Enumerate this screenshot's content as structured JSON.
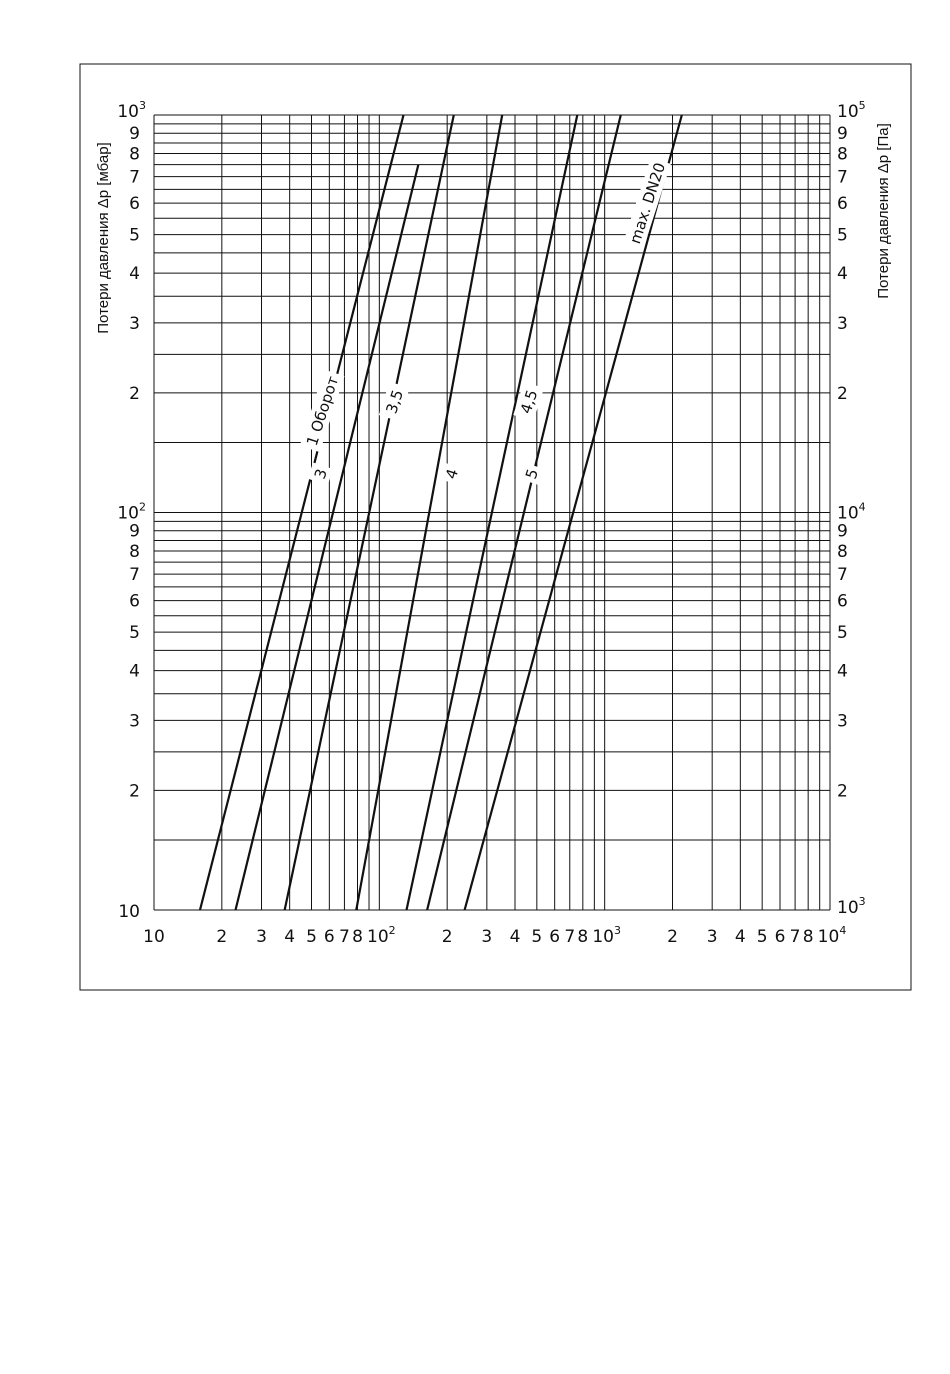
{
  "chart_data": {
    "type": "line",
    "title": "",
    "x_scale": "log",
    "y_scale": "log",
    "xlim": [
      10,
      10000
    ],
    "ylim": [
      10,
      1000
    ],
    "grid": true,
    "y_label_left": "Потери давления Δp [мбар]",
    "y_label_right": "Потери давления Δp [Па]",
    "x_tick_labels": [
      {
        "value": 10,
        "base": "10",
        "sup": ""
      },
      {
        "value": 20,
        "base": "2",
        "sup": ""
      },
      {
        "value": 30,
        "base": "3",
        "sup": ""
      },
      {
        "value": 40,
        "base": "4",
        "sup": ""
      },
      {
        "value": 50,
        "base": "5",
        "sup": ""
      },
      {
        "value": 60,
        "base": "6",
        "sup": ""
      },
      {
        "value": 70,
        "base": "7",
        "sup": ""
      },
      {
        "value": 80,
        "base": "8",
        "sup": ""
      },
      {
        "value": 100,
        "base": "10",
        "sup": "2"
      },
      {
        "value": 200,
        "base": "2",
        "sup": ""
      },
      {
        "value": 300,
        "base": "3",
        "sup": ""
      },
      {
        "value": 400,
        "base": "4",
        "sup": ""
      },
      {
        "value": 500,
        "base": "5",
        "sup": ""
      },
      {
        "value": 600,
        "base": "6",
        "sup": ""
      },
      {
        "value": 700,
        "base": "7",
        "sup": ""
      },
      {
        "value": 800,
        "base": "8",
        "sup": ""
      },
      {
        "value": 1000,
        "base": "10",
        "sup": "3"
      },
      {
        "value": 2000,
        "base": "2",
        "sup": ""
      },
      {
        "value": 3000,
        "base": "3",
        "sup": ""
      },
      {
        "value": 4000,
        "base": "4",
        "sup": ""
      },
      {
        "value": 5000,
        "base": "5",
        "sup": ""
      },
      {
        "value": 6000,
        "base": "6",
        "sup": ""
      },
      {
        "value": 7000,
        "base": "7",
        "sup": ""
      },
      {
        "value": 8000,
        "base": "8",
        "sup": ""
      },
      {
        "value": 10000,
        "base": "10",
        "sup": "4"
      }
    ],
    "y_tick_labels_left": [
      {
        "value": 10,
        "base": "10",
        "sup": ""
      },
      {
        "value": 20,
        "base": "2",
        "sup": ""
      },
      {
        "value": 30,
        "base": "3",
        "sup": ""
      },
      {
        "value": 40,
        "base": "4",
        "sup": ""
      },
      {
        "value": 50,
        "base": "5",
        "sup": ""
      },
      {
        "value": 60,
        "base": "6",
        "sup": ""
      },
      {
        "value": 70,
        "base": "7",
        "sup": ""
      },
      {
        "value": 80,
        "base": "8",
        "sup": ""
      },
      {
        "value": 90,
        "base": "9",
        "sup": ""
      },
      {
        "value": 100,
        "base": "10",
        "sup": "2"
      },
      {
        "value": 200,
        "base": "2",
        "sup": ""
      },
      {
        "value": 300,
        "base": "3",
        "sup": ""
      },
      {
        "value": 400,
        "base": "4",
        "sup": ""
      },
      {
        "value": 500,
        "base": "5",
        "sup": ""
      },
      {
        "value": 600,
        "base": "6",
        "sup": ""
      },
      {
        "value": 700,
        "base": "7",
        "sup": ""
      },
      {
        "value": 800,
        "base": "8",
        "sup": ""
      },
      {
        "value": 900,
        "base": "9",
        "sup": ""
      },
      {
        "value": 1000,
        "base": "10",
        "sup": "3"
      }
    ],
    "y_tick_labels_right": [
      {
        "value": 10,
        "base": "10",
        "sup": "3"
      },
      {
        "value": 20,
        "base": "2",
        "sup": ""
      },
      {
        "value": 30,
        "base": "3",
        "sup": ""
      },
      {
        "value": 40,
        "base": "4",
        "sup": ""
      },
      {
        "value": 50,
        "base": "5",
        "sup": ""
      },
      {
        "value": 60,
        "base": "6",
        "sup": ""
      },
      {
        "value": 70,
        "base": "7",
        "sup": ""
      },
      {
        "value": 80,
        "base": "8",
        "sup": ""
      },
      {
        "value": 90,
        "base": "9",
        "sup": ""
      },
      {
        "value": 100,
        "base": "10",
        "sup": "4"
      },
      {
        "value": 200,
        "base": "2",
        "sup": ""
      },
      {
        "value": 300,
        "base": "3",
        "sup": ""
      },
      {
        "value": 400,
        "base": "4",
        "sup": ""
      },
      {
        "value": 500,
        "base": "5",
        "sup": ""
      },
      {
        "value": 600,
        "base": "6",
        "sup": ""
      },
      {
        "value": 700,
        "base": "7",
        "sup": ""
      },
      {
        "value": 800,
        "base": "8",
        "sup": ""
      },
      {
        "value": 900,
        "base": "9",
        "sup": ""
      },
      {
        "value": 1000,
        "base": "10",
        "sup": "5"
      }
    ],
    "series": [
      {
        "name": "1 Оборот",
        "points": [
          [
            16.0,
            10
          ],
          [
            128,
            1000
          ]
        ]
      },
      {
        "name": "3",
        "points": [
          [
            23.0,
            10
          ],
          [
            149,
            750
          ]
        ]
      },
      {
        "name": "3.5",
        "points": [
          [
            38.0,
            10
          ],
          [
            214,
            1000
          ]
        ]
      },
      {
        "name": "4",
        "points": [
          [
            79.0,
            10
          ],
          [
            351,
            1000
          ]
        ]
      },
      {
        "name": "4.5",
        "points": [
          [
            132,
            10
          ],
          [
            756,
            1000
          ]
        ]
      },
      {
        "name": "5",
        "points": [
          [
            163,
            10
          ],
          [
            1179,
            1000
          ]
        ]
      },
      {
        "name": "max. DN20",
        "points": [
          [
            239,
            10
          ],
          [
            2200,
            1000
          ]
        ]
      }
    ],
    "labels": [
      {
        "series": "1 Оборот",
        "text": "1 Оборот",
        "x": 56,
        "y": 180,
        "angle": -72
      },
      {
        "series": "3",
        "text": "3",
        "x": 55,
        "y": 125,
        "angle": -72
      },
      {
        "series": "3.5",
        "text": "3,5",
        "x": 117,
        "y": 190,
        "angle": -72
      },
      {
        "series": "4",
        "text": "4",
        "x": 210,
        "y": 125,
        "angle": -72
      },
      {
        "series": "4.5",
        "text": "4,5",
        "x": 462,
        "y": 190,
        "angle": -72
      },
      {
        "series": "5",
        "text": "5",
        "x": 476,
        "y": 125,
        "angle": -72
      },
      {
        "series": "max. DN20",
        "text": "max. DN20",
        "x": 1550,
        "y": 600,
        "angle": -72
      }
    ]
  }
}
